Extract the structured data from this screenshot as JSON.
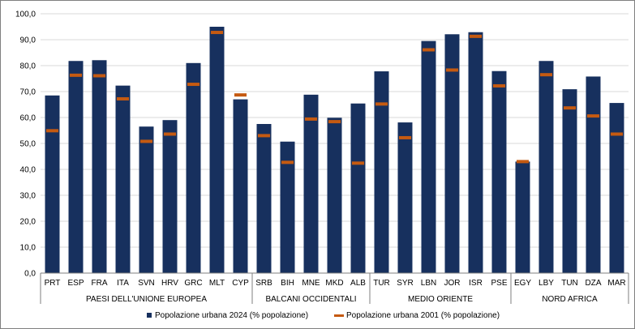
{
  "chart_data": {
    "type": "bar",
    "ylim": [
      0,
      100
    ],
    "ytick_step": 10,
    "ytick_format": "0,0",
    "grid": true,
    "legend_position": "bottom",
    "groups": [
      {
        "label": "PAESI DELL'UNIONE EUROPEA",
        "categories": [
          "PRT",
          "ESP",
          "FRA",
          "ITA",
          "SVN",
          "HRV",
          "GRC",
          "MLT",
          "CYP"
        ]
      },
      {
        "label": "BALCANI OCCIDENTALI",
        "categories": [
          "SRB",
          "BIH",
          "MNE",
          "MKD",
          "ALB"
        ]
      },
      {
        "label": "MEDIO ORIENTE",
        "categories": [
          "TUR",
          "SYR",
          "LBN",
          "JOR",
          "ISR",
          "PSE"
        ]
      },
      {
        "label": "NORD AFRICA",
        "categories": [
          "EGY",
          "LBY",
          "TUN",
          "DZA",
          "MAR"
        ]
      }
    ],
    "categories": [
      "PRT",
      "ESP",
      "FRA",
      "ITA",
      "SVN",
      "HRV",
      "GRC",
      "MLT",
      "CYP",
      "SRB",
      "BIH",
      "MNE",
      "MKD",
      "ALB",
      "TUR",
      "SYR",
      "LBN",
      "JOR",
      "ISR",
      "PSE",
      "EGY",
      "LBY",
      "TUN",
      "DZA",
      "MAR"
    ],
    "series": [
      {
        "name": "Popolazione urbana 2024 (% popolazione)",
        "kind": "bar",
        "color": "#17305e",
        "values": [
          68.5,
          81.8,
          82.1,
          72.3,
          56.5,
          59.0,
          81.0,
          95.0,
          67.0,
          57.5,
          50.7,
          68.8,
          59.9,
          65.4,
          77.8,
          58.1,
          89.5,
          92.1,
          92.9,
          77.9,
          43.0,
          81.8,
          70.9,
          75.8,
          65.6
        ]
      },
      {
        "name": "Popolazione urbana 2001 (% popolazione)",
        "kind": "marker",
        "color": "#c55a11",
        "values": [
          54.9,
          76.3,
          76.1,
          67.2,
          50.8,
          53.6,
          72.8,
          92.8,
          68.7,
          53.0,
          42.7,
          59.4,
          58.4,
          42.4,
          65.2,
          52.2,
          86.1,
          78.3,
          91.3,
          72.2,
          43.0,
          76.5,
          63.7,
          60.6,
          53.6
        ]
      }
    ]
  }
}
